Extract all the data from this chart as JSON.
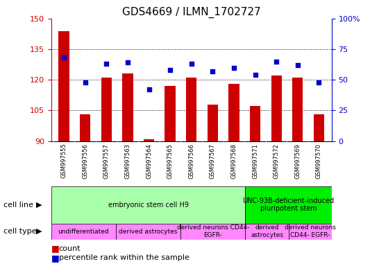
{
  "title": "GDS4669 / ILMN_1702727",
  "samples": [
    "GSM997555",
    "GSM997556",
    "GSM997557",
    "GSM997563",
    "GSM997564",
    "GSM997565",
    "GSM997566",
    "GSM997567",
    "GSM997568",
    "GSM997571",
    "GSM997572",
    "GSM997569",
    "GSM997570"
  ],
  "counts": [
    144,
    103,
    121,
    123,
    91,
    117,
    121,
    108,
    118,
    107,
    122,
    121,
    103
  ],
  "percentiles": [
    68,
    48,
    63,
    64,
    42,
    58,
    63,
    57,
    60,
    54,
    65,
    62,
    48
  ],
  "ylim_left": [
    90,
    150
  ],
  "ylim_right": [
    0,
    100
  ],
  "yticks_left": [
    90,
    105,
    120,
    135,
    150
  ],
  "yticks_right": [
    0,
    25,
    50,
    75,
    100
  ],
  "bar_color": "#cc0000",
  "dot_color": "#0000cc",
  "bar_width": 0.5,
  "cell_line_groups": [
    {
      "label": "embryonic stem cell H9",
      "start": 0,
      "end": 9,
      "color": "#aaffaa"
    },
    {
      "label": "UNC-93B-deficient-induced\npluripotent stem",
      "start": 9,
      "end": 13,
      "color": "#00ee00"
    }
  ],
  "cell_type_groups": [
    {
      "label": "undifferentiated",
      "start": 0,
      "end": 3,
      "color": "#ff88ff"
    },
    {
      "label": "derived astrocytes",
      "start": 3,
      "end": 6,
      "color": "#ff88ff"
    },
    {
      "label": "derived neurons CD44-\nEGFR-",
      "start": 6,
      "end": 9,
      "color": "#ff88ff"
    },
    {
      "label": "derived\nastrocytes",
      "start": 9,
      "end": 11,
      "color": "#ff88ff"
    },
    {
      "label": "derived neurons\nCD44- EGFR-",
      "start": 11,
      "end": 13,
      "color": "#ff88ff"
    }
  ],
  "xtick_bg": "#cccccc",
  "grid_color": "#000000",
  "tick_color_left": "#cc0000",
  "tick_color_right": "#0000cc"
}
